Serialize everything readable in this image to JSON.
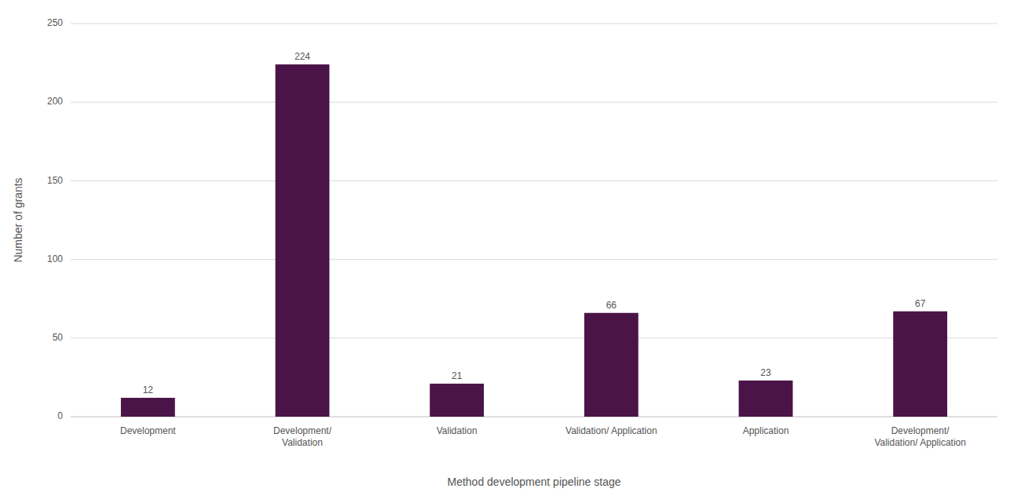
{
  "chart_data": {
    "type": "bar",
    "categories": [
      "Development",
      "Development/\nValidation",
      "Validation",
      "Validation/ Application",
      "Application",
      "Development/\nValidation/ Application"
    ],
    "values": [
      12,
      224,
      21,
      66,
      23,
      67
    ],
    "color": "#4B1448",
    "xlabel": "Method development pipeline stage",
    "ylabel": "Number of grants",
    "ylim": [
      0,
      250
    ],
    "yticks": [
      0,
      50,
      100,
      150,
      200,
      250
    ],
    "grid": true,
    "data_labels": true
  }
}
